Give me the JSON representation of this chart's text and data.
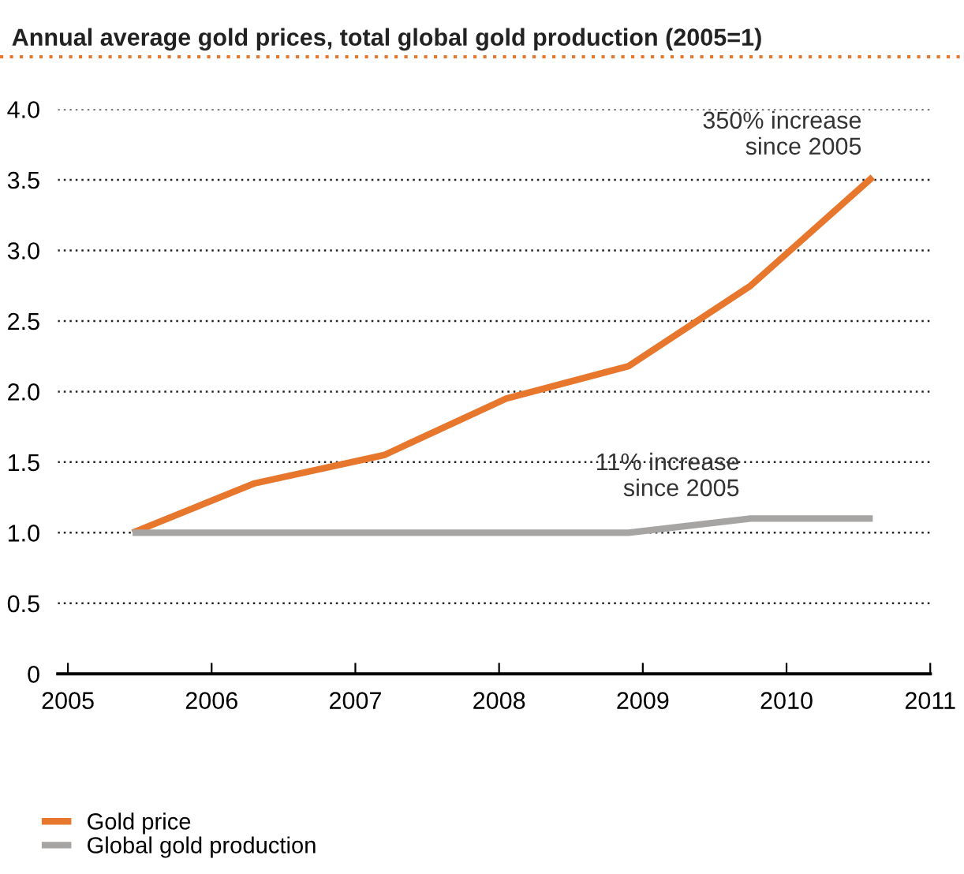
{
  "chart_data": {
    "type": "line",
    "title": "Annual average gold prices, total global gold production (2005=1)",
    "x": [
      2005.45,
      2006.3,
      2007.2,
      2008.05,
      2008.9,
      2009.75,
      2010.6
    ],
    "series": [
      {
        "name": "Gold price",
        "color": "#e8772e",
        "values": [
          1.0,
          1.35,
          1.55,
          1.95,
          2.18,
          2.75,
          3.52
        ]
      },
      {
        "name": "Global gold production",
        "color": "#a7a5a3",
        "values": [
          1.0,
          1.0,
          1.0,
          1.0,
          1.0,
          1.1,
          1.1
        ]
      }
    ],
    "xlim": [
      2004.93,
      2011.0
    ],
    "xticks": [
      2005,
      2006,
      2007,
      2008,
      2009,
      2010,
      2011
    ],
    "ylim": [
      0,
      4.0
    ],
    "yticks": [
      0,
      0.5,
      {
        "value": 1,
        "label": "1.0"
      },
      1.5,
      {
        "value": 2,
        "label": "2.0"
      },
      2.5,
      {
        "value": 3,
        "label": "3.0"
      },
      3.5,
      {
        "value": 4,
        "label": "4.0"
      }
    ],
    "grid": "y",
    "legend": "bottom left",
    "marker": "none",
    "line_style": "solid",
    "annotations": [
      {
        "text": "350% increase\nsince 2005",
        "x": 2010.6,
        "y": 3.52
      },
      {
        "text": "11% increase\nsince 2005",
        "x": 2009.75,
        "y": 1.1
      }
    ]
  }
}
